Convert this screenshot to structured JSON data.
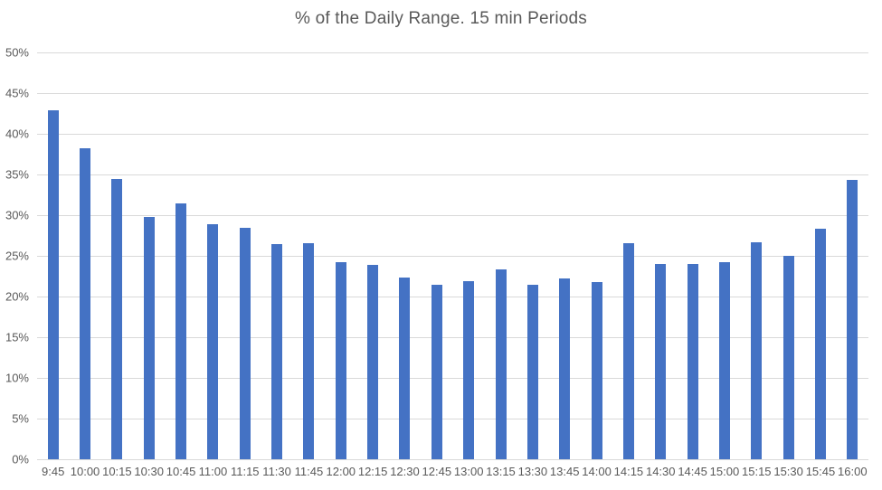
{
  "chart_data": {
    "type": "bar",
    "title": "% of the Daily Range. 15 min Periods",
    "categories": [
      "9:45",
      "10:00",
      "10:15",
      "10:30",
      "10:45",
      "11:00",
      "11:15",
      "11:30",
      "11:45",
      "12:00",
      "12:15",
      "12:30",
      "12:45",
      "13:00",
      "13:15",
      "13:30",
      "13:45",
      "14:00",
      "14:15",
      "14:30",
      "14:45",
      "15:00",
      "15:15",
      "15:30",
      "15:45",
      "16:00"
    ],
    "values": [
      42.9,
      38.2,
      34.5,
      29.8,
      31.5,
      28.9,
      28.5,
      26.4,
      26.6,
      24.2,
      23.9,
      22.3,
      21.4,
      21.9,
      23.3,
      21.4,
      22.2,
      21.8,
      26.6,
      24.0,
      24.0,
      24.2,
      26.7,
      25.0,
      28.3,
      34.3
    ],
    "xlabel": "",
    "ylabel": "",
    "ylim": [
      0,
      50
    ],
    "ytick_step": 5,
    "ytick_labels": [
      "0%",
      "5%",
      "10%",
      "15%",
      "20%",
      "25%",
      "30%",
      "35%",
      "40%",
      "45%",
      "50%"
    ],
    "grid": true,
    "legend": false,
    "colors": {
      "bar": "#4472C4",
      "grid": "#D9D9D9",
      "text": "#595959",
      "background": "#FFFFFF"
    }
  }
}
